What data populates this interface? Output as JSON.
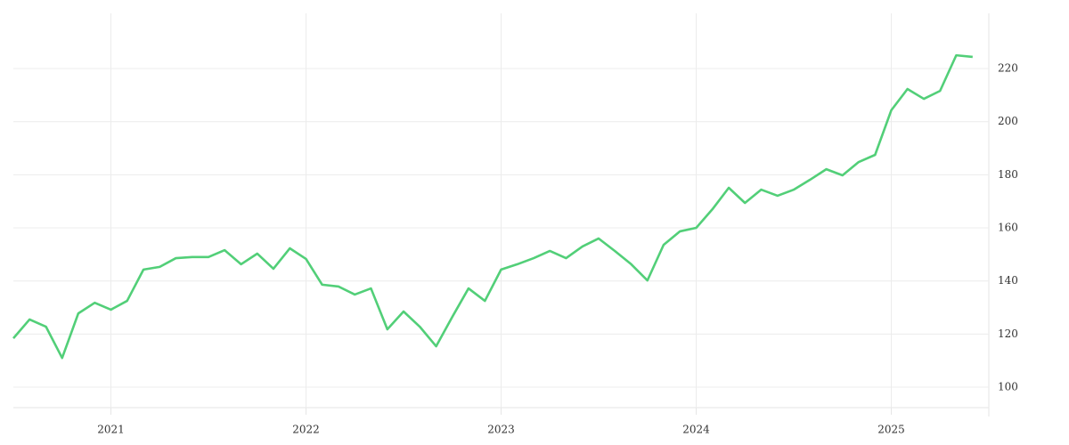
{
  "chart_data": {
    "type": "line",
    "x": [
      2020.5,
      2020.583,
      2020.667,
      2020.75,
      2020.833,
      2020.917,
      2021,
      2021.083,
      2021.167,
      2021.25,
      2021.333,
      2021.417,
      2021.5,
      2021.583,
      2021.667,
      2021.75,
      2021.833,
      2021.917,
      2022,
      2022.083,
      2022.167,
      2022.25,
      2022.333,
      2022.417,
      2022.5,
      2022.583,
      2022.667,
      2022.75,
      2022.833,
      2022.917,
      2023,
      2023.083,
      2023.167,
      2023.25,
      2023.333,
      2023.417,
      2023.5,
      2023.583,
      2023.667,
      2023.75,
      2023.833,
      2023.917,
      2024,
      2024.083,
      2024.167,
      2024.25,
      2024.333,
      2024.417,
      2024.5,
      2024.583,
      2024.667,
      2024.75,
      2024.833,
      2024.917,
      2025,
      2025.083,
      2025.167,
      2025.25,
      2025.333,
      2025.417
    ],
    "values": [
      118.4,
      125.5,
      122.8,
      111,
      127.8,
      131.8,
      129.2,
      132.5,
      144.3,
      145.3,
      148.6,
      149,
      149,
      151.6,
      146.3,
      150.3,
      144.6,
      152.3,
      148.3,
      138.6,
      137.9,
      134.9,
      137.2,
      121.8,
      128.5,
      122.8,
      115.4,
      126.5,
      137.2,
      132.5,
      144.3,
      146.3,
      148.6,
      151.3,
      148.6,
      153,
      156,
      151.3,
      146.3,
      140.2,
      153.6,
      158.7,
      160,
      167,
      175.1,
      169.4,
      174.4,
      172.1,
      174.4,
      178.1,
      182.1,
      179.8,
      184.8,
      187.5,
      204.3,
      212.3,
      208.6,
      211.6,
      225,
      224.4
    ],
    "color": "#52cf78",
    "xlim": [
      2020.5,
      2025.5
    ],
    "xticks": [
      2021,
      2022,
      2023,
      2024,
      2025
    ],
    "ylim": [
      92.3,
      240.8
    ],
    "yticks": [
      100,
      120,
      140,
      160,
      180,
      200,
      220
    ],
    "grid": true
  }
}
